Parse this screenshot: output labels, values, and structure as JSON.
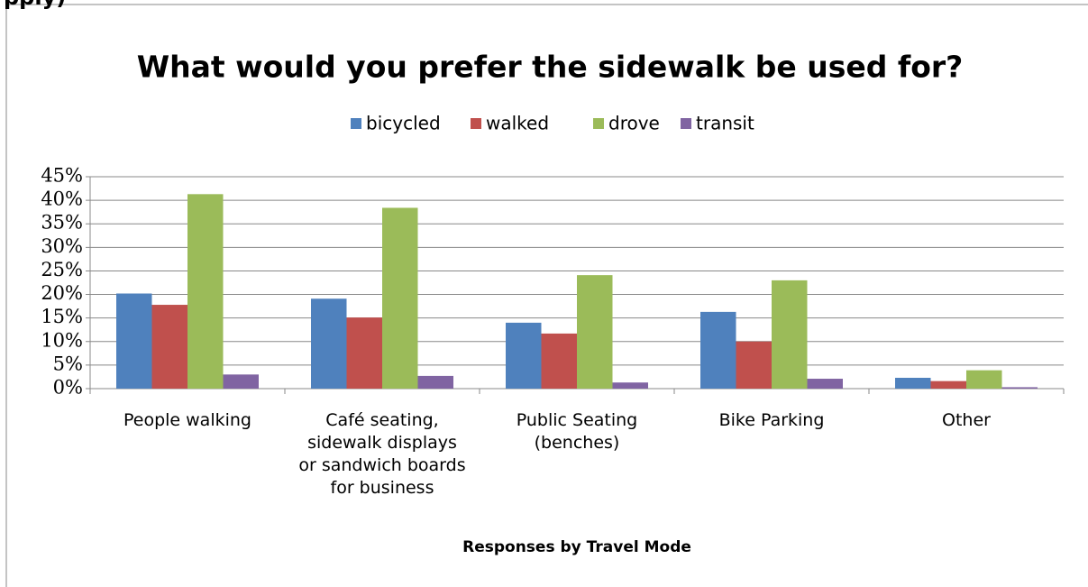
{
  "header_fragment": "pply)",
  "chart_data": {
    "type": "bar",
    "title": "What would you prefer the sidewalk be used for?",
    "x_label": "Responses by Travel Mode",
    "categories": [
      "People walking",
      "Café seating, sidewalk displays or sandwich boards for business",
      "Public Seating (benches)",
      "Bike Parking",
      "Other"
    ],
    "series": [
      {
        "name": "bicycled",
        "color": "#4f81bd",
        "values": [
          20.2,
          19.1,
          14.0,
          16.3,
          2.3
        ]
      },
      {
        "name": "walked",
        "color": "#c0504d",
        "values": [
          17.8,
          15.1,
          11.7,
          10.0,
          1.6
        ]
      },
      {
        "name": "drove",
        "color": "#9bbb59",
        "values": [
          41.3,
          38.4,
          24.1,
          23.0,
          3.9
        ]
      },
      {
        "name": "transit",
        "color": "#8064a2",
        "values": [
          3.0,
          2.7,
          1.3,
          2.1,
          0.3
        ]
      }
    ],
    "ylim": [
      0,
      45
    ],
    "yticks": [
      {
        "value": 0,
        "label": "0%"
      },
      {
        "value": 5,
        "label": "5%"
      },
      {
        "value": 10,
        "label": "10%"
      },
      {
        "value": 15,
        "label": "15%"
      },
      {
        "value": 20,
        "label": "20%"
      },
      {
        "value": 25,
        "label": "25%"
      },
      {
        "value": 30,
        "label": "30%"
      },
      {
        "value": 35,
        "label": "35%"
      },
      {
        "value": 40,
        "label": "40%"
      },
      {
        "value": 45,
        "label": "45%"
      }
    ],
    "grid": true,
    "legend": "top"
  }
}
